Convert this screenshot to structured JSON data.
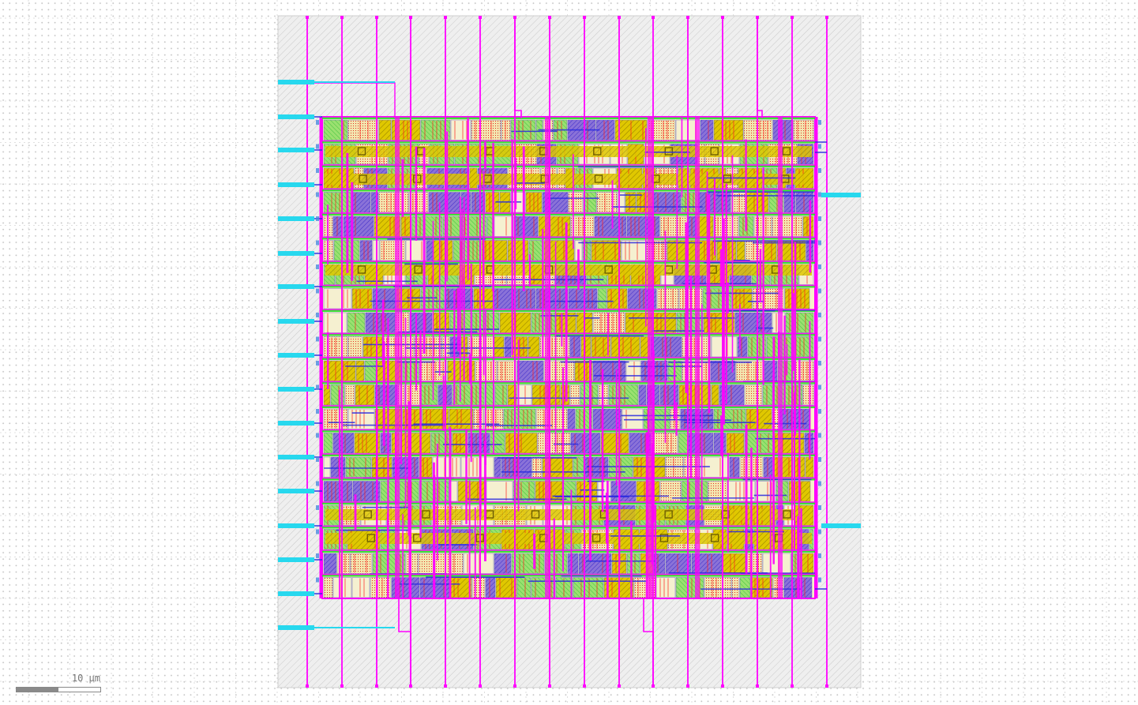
{
  "viewer": {
    "scale_bar_label": "10 µm"
  },
  "colors": {
    "background": "#ffffff",
    "grid_dots": "#c4c4c4",
    "grid_lines": "#d6d6d6",
    "die_fill": "#eeeeee",
    "die_hatch": "#c8c8c8",
    "metal_vertical": "#ff00ff",
    "metal_horizontal": "#2a2ae0",
    "pins": "#27d8ee",
    "poly": "#ff2020",
    "diffusion": "#28e028",
    "local_interconnect": "#e6d200",
    "well": "#d8c000",
    "label_text": "#c070e0"
  },
  "layers": [
    "pins",
    "metal_vertical",
    "metal_horizontal",
    "local_interconnect",
    "poly",
    "diffusion",
    "well"
  ]
}
